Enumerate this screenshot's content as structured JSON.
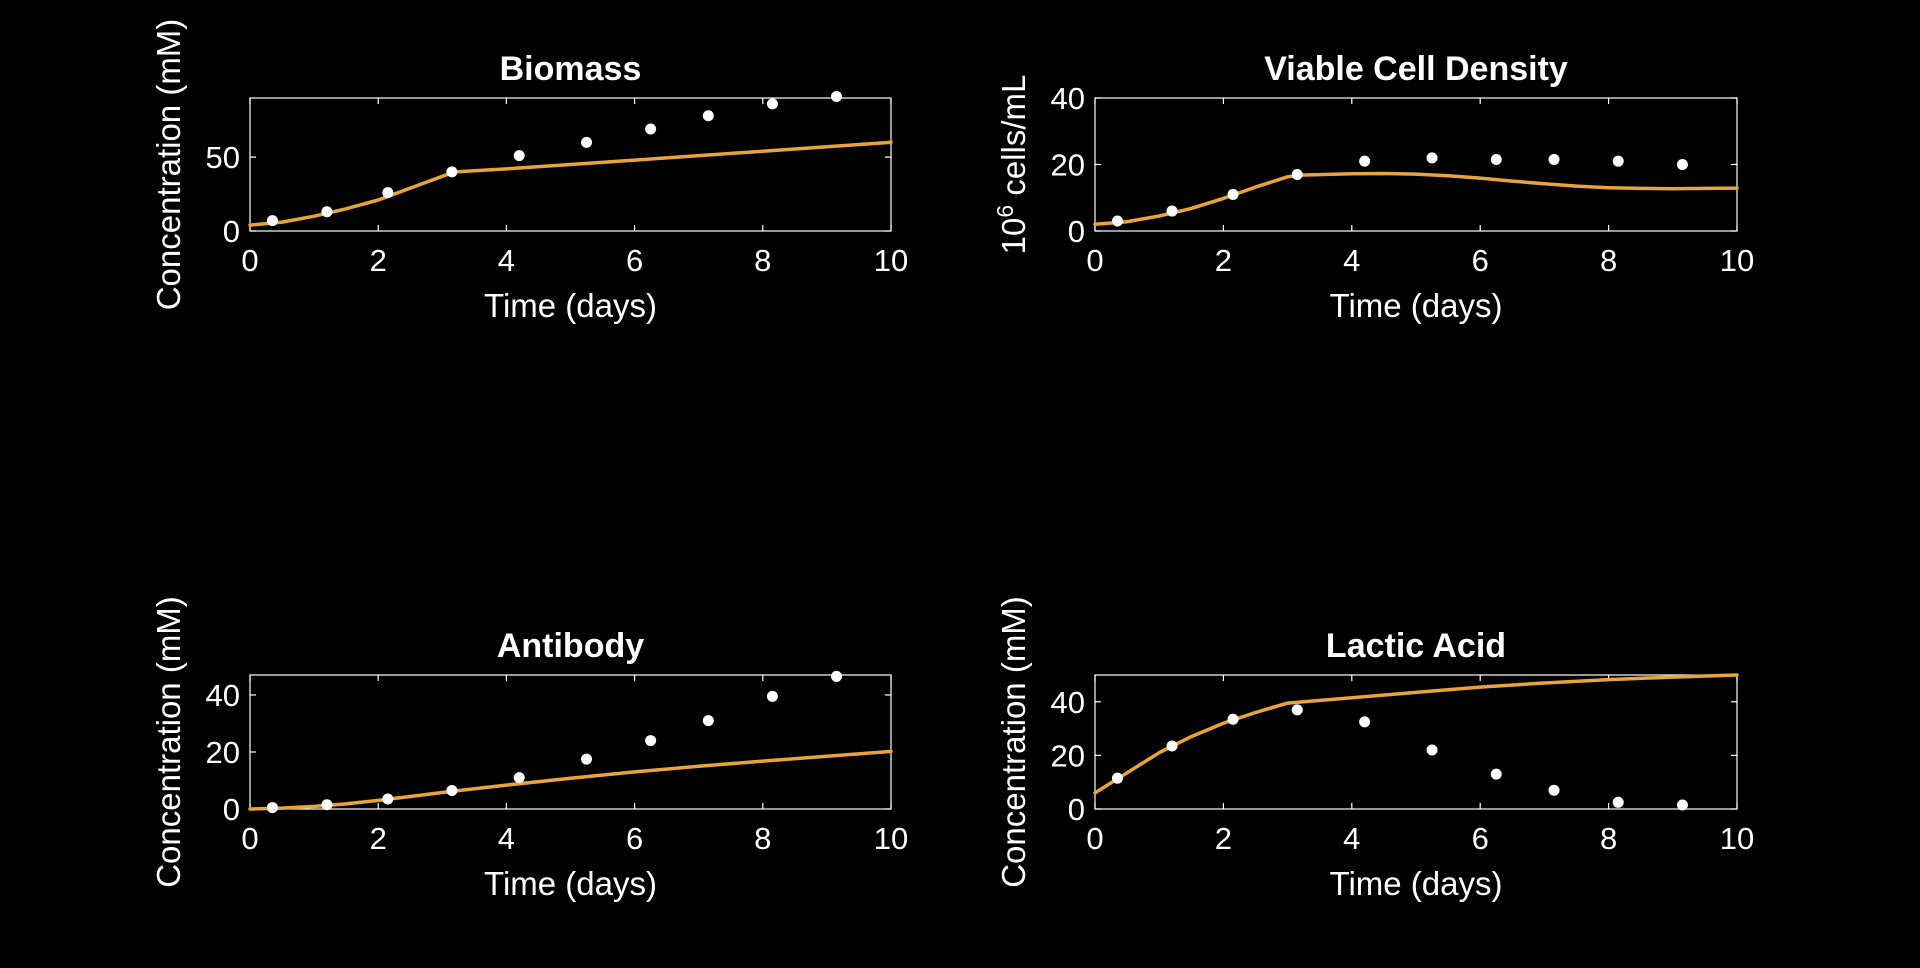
{
  "chart_data": [
    {
      "type": "line",
      "title": "Biomass",
      "xlabel": "Time (days)",
      "ylabel": "Concentration (mM)",
      "xlim": [
        0,
        10
      ],
      "ylim": [
        0,
        90
      ],
      "xticks": [
        0,
        2,
        4,
        6,
        8,
        10
      ],
      "yticks": [
        0,
        50
      ],
      "grid": false,
      "series": [
        {
          "kind": "model-line",
          "color": "#e8a33a",
          "x": [
            0,
            0.5,
            1,
            1.5,
            2,
            2.5,
            3,
            3.2,
            4,
            5,
            6,
            7,
            8,
            9,
            10
          ],
          "y": [
            4,
            6,
            10,
            15,
            21,
            29,
            37,
            40,
            42,
            45,
            48,
            51,
            54,
            57,
            60
          ]
        },
        {
          "kind": "measured-points",
          "color": "#ffffff",
          "x": [
            0.35,
            1.2,
            2.15,
            3.15,
            4.2,
            5.25,
            6.25,
            7.15,
            8.15,
            9.15
          ],
          "y": [
            7,
            13,
            26,
            40,
            51,
            60,
            69,
            78,
            86,
            91
          ]
        }
      ]
    },
    {
      "type": "line",
      "title": "Viable Cell Density",
      "xlabel": "Time (days)",
      "ylabel": "10^6 cells/mL",
      "ylabel_base": "10",
      "ylabel_exp": "6",
      "ylabel_rest": " cells/mL",
      "xlim": [
        0,
        10
      ],
      "ylim": [
        0,
        40
      ],
      "xticks": [
        0,
        2,
        4,
        6,
        8,
        10
      ],
      "yticks": [
        0,
        20,
        40
      ],
      "grid": false,
      "series": [
        {
          "kind": "model-line",
          "color": "#e8a33a",
          "x": [
            0,
            0.5,
            1,
            1.5,
            2,
            2.5,
            3,
            3.2,
            4,
            4.5,
            5,
            5.5,
            6,
            6.5,
            7,
            7.5,
            8,
            8.5,
            9,
            9.5,
            10
          ],
          "y": [
            2,
            2.8,
            4.5,
            6.8,
            9.8,
            13.2,
            16.3,
            16.8,
            17.2,
            17.3,
            17.1,
            16.6,
            15.9,
            15.0,
            14.2,
            13.5,
            13.0,
            12.8,
            12.7,
            12.8,
            12.9
          ]
        },
        {
          "kind": "measured-points",
          "color": "#ffffff",
          "x": [
            0.35,
            1.2,
            2.15,
            3.15,
            4.2,
            5.25,
            6.25,
            7.15,
            8.15,
            9.15
          ],
          "y": [
            3,
            6,
            11,
            17,
            21,
            22,
            21.5,
            21.5,
            21,
            20
          ]
        }
      ]
    },
    {
      "type": "line",
      "title": "Antibody",
      "xlabel": "Time (days)",
      "ylabel": "Concentration (mM)",
      "xlim": [
        0,
        10
      ],
      "ylim": [
        0,
        47
      ],
      "xticks": [
        0,
        2,
        4,
        6,
        8,
        10
      ],
      "yticks": [
        0,
        20,
        40
      ],
      "grid": false,
      "series": [
        {
          "kind": "model-line",
          "color": "#e8a33a",
          "x": [
            0,
            0.5,
            1,
            1.5,
            2,
            2.5,
            3,
            3.5,
            4,
            5,
            6,
            7,
            8,
            9,
            10
          ],
          "y": [
            0,
            0.3,
            0.9,
            1.8,
            3.0,
            4.4,
            5.8,
            7.1,
            8.4,
            10.8,
            13.0,
            15.0,
            16.8,
            18.5,
            20.2
          ]
        },
        {
          "kind": "measured-points",
          "color": "#ffffff",
          "x": [
            0.35,
            1.2,
            2.15,
            3.15,
            4.2,
            5.25,
            6.25,
            7.15,
            8.15,
            9.15
          ],
          "y": [
            0.5,
            1.5,
            3.5,
            6.5,
            11,
            17.5,
            24,
            31,
            39.5,
            46.5
          ]
        }
      ]
    },
    {
      "type": "line",
      "title": "Lactic Acid",
      "xlabel": "Time (days)",
      "ylabel": "Concentration (mM)",
      "xlim": [
        0,
        10
      ],
      "ylim": [
        0,
        50
      ],
      "xticks": [
        0,
        2,
        4,
        6,
        8,
        10
      ],
      "yticks": [
        0,
        20,
        40
      ],
      "grid": false,
      "series": [
        {
          "kind": "model-line",
          "color": "#e8a33a",
          "x": [
            0,
            0.5,
            1,
            1.5,
            2,
            2.5,
            3,
            4,
            5,
            6,
            7,
            8,
            9,
            10
          ],
          "y": [
            6,
            13.5,
            21,
            27,
            32,
            36,
            39.5,
            41.5,
            43.5,
            45.5,
            47,
            48.3,
            49.2,
            50
          ]
        },
        {
          "kind": "measured-points",
          "color": "#ffffff",
          "x": [
            0.35,
            1.2,
            2.15,
            3.15,
            4.2,
            5.25,
            6.25,
            7.15,
            8.15,
            9.15
          ],
          "y": [
            11.5,
            23.5,
            33.5,
            37,
            32.5,
            22,
            13,
            7,
            2.5,
            1.5
          ]
        }
      ]
    }
  ]
}
